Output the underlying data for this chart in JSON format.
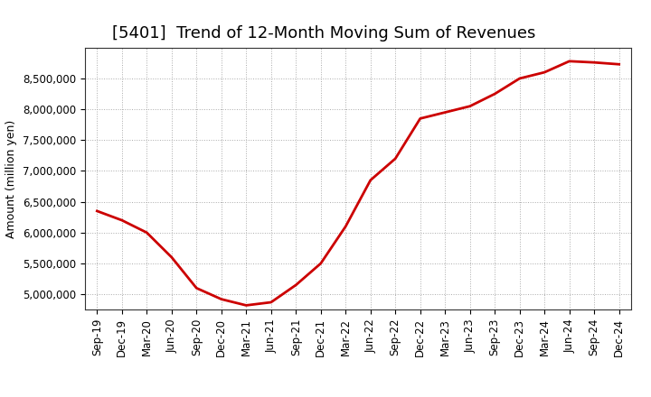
{
  "title": "[5401]  Trend of 12-Month Moving Sum of Revenues",
  "ylabel": "Amount (million yen)",
  "line_color": "#cc0000",
  "background_color": "#ffffff",
  "plot_bg_color": "#ffffff",
  "grid_color": "#aaaaaa",
  "x_labels": [
    "Sep-19",
    "Dec-19",
    "Mar-20",
    "Jun-20",
    "Sep-20",
    "Dec-20",
    "Mar-21",
    "Jun-21",
    "Sep-21",
    "Dec-21",
    "Mar-22",
    "Jun-22",
    "Sep-22",
    "Dec-22",
    "Mar-23",
    "Jun-23",
    "Sep-23",
    "Dec-23",
    "Mar-24",
    "Jun-24",
    "Sep-24",
    "Dec-24"
  ],
  "values": [
    6350000,
    6200000,
    6000000,
    5600000,
    5100000,
    4920000,
    4820000,
    4870000,
    5150000,
    5500000,
    6100000,
    6850000,
    7200000,
    7850000,
    7950000,
    8050000,
    8250000,
    8500000,
    8600000,
    8780000,
    8760000,
    8730000
  ],
  "ylim": [
    4750000,
    9000000
  ],
  "yticks": [
    5000000,
    5500000,
    6000000,
    6500000,
    7000000,
    7500000,
    8000000,
    8500000
  ],
  "title_fontsize": 13,
  "axis_fontsize": 9,
  "tick_fontsize": 8.5,
  "line_width": 2.0
}
